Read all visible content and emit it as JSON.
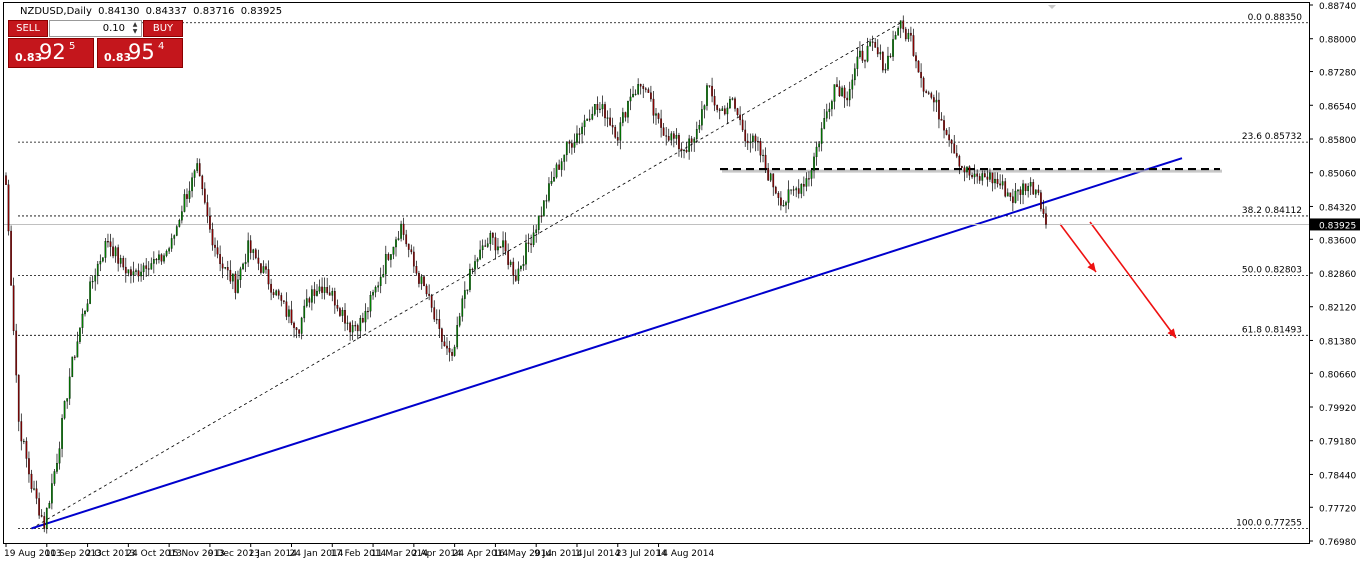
{
  "header": {
    "symbol": "NZDUSD,Daily",
    "open": "0.84130",
    "high": "0.84337",
    "low": "0.83716",
    "close": "0.83925"
  },
  "trade_panel": {
    "sell_label": "SELL",
    "buy_label": "BUY",
    "lot_value": "0.10",
    "sell_price_prefix": "0.83",
    "sell_price_big": "92",
    "sell_price_sup": "5",
    "buy_price_prefix": "0.83",
    "buy_price_big": "95",
    "buy_price_sup": "4",
    "button_color": "#c4161c"
  },
  "chart_data": {
    "type": "candlestick",
    "ylim": [
      0.7698,
      0.8874
    ],
    "y_ticks": [
      "0.88740",
      "0.88000",
      "0.87280",
      "0.86540",
      "0.85800",
      "0.85060",
      "0.84320",
      "0.83600",
      "0.82860",
      "0.82120",
      "0.81380",
      "0.80660",
      "0.79920",
      "0.79180",
      "0.78440",
      "0.77720",
      "0.76980"
    ],
    "x_ticks": [
      "19 Aug 2013",
      "10 Sep 2013",
      "2 Oct 2013",
      "24 Oct 2013",
      "15 Nov 2013",
      "9 Dec 2013",
      "2 Jan 2014",
      "24 Jan 2014",
      "17 Feb 2014",
      "11 Mar 2014",
      "2 Apr 2014",
      "24 Apr 2014",
      "16 May 2014",
      "9 Jun 2014",
      "1 Jul 2014",
      "23 Jul 2014",
      "14 Aug 2014"
    ],
    "current_price": "0.83925",
    "colors": {
      "bull": "#008000",
      "bear": "#8b0000",
      "trendline": "#0000cd",
      "arrows": "#ee1111",
      "current_price_bg": "#000000"
    },
    "fibonacci": [
      {
        "level": "0.0",
        "value": "0.88350"
      },
      {
        "level": "23.6",
        "value": "0.85732"
      },
      {
        "level": "38.2",
        "value": "0.84112"
      },
      {
        "level": "50.0",
        "value": "0.82803"
      },
      {
        "level": "61.8",
        "value": "0.81493"
      },
      {
        "level": "100.0",
        "value": "0.77255"
      }
    ],
    "anchors": [
      [
        0,
        0.848
      ],
      [
        5,
        0.796
      ],
      [
        10,
        0.782
      ],
      [
        15,
        0.7735
      ],
      [
        20,
        0.788
      ],
      [
        25,
        0.806
      ],
      [
        30,
        0.819
      ],
      [
        35,
        0.829
      ],
      [
        40,
        0.836
      ],
      [
        45,
        0.8305
      ],
      [
        50,
        0.828
      ],
      [
        55,
        0.831
      ],
      [
        60,
        0.831
      ],
      [
        65,
        0.835
      ],
      [
        70,
        0.845
      ],
      [
        75,
        0.851
      ],
      [
        80,
        0.838
      ],
      [
        85,
        0.83
      ],
      [
        90,
        0.826
      ],
      [
        95,
        0.834
      ],
      [
        100,
        0.83
      ],
      [
        105,
        0.825
      ],
      [
        110,
        0.82
      ],
      [
        115,
        0.817
      ],
      [
        120,
        0.825
      ],
      [
        125,
        0.826
      ],
      [
        130,
        0.822
      ],
      [
        135,
        0.817
      ],
      [
        140,
        0.818
      ],
      [
        145,
        0.825
      ],
      [
        150,
        0.833
      ],
      [
        155,
        0.839
      ],
      [
        160,
        0.83
      ],
      [
        165,
        0.824
      ],
      [
        170,
        0.815
      ],
      [
        175,
        0.809
      ],
      [
        180,
        0.825
      ],
      [
        185,
        0.832
      ],
      [
        190,
        0.836
      ],
      [
        195,
        0.834
      ],
      [
        200,
        0.828
      ],
      [
        205,
        0.835
      ],
      [
        210,
        0.842
      ],
      [
        215,
        0.85
      ],
      [
        220,
        0.856
      ],
      [
        225,
        0.86
      ],
      [
        230,
        0.865
      ],
      [
        235,
        0.864
      ],
      [
        240,
        0.859
      ],
      [
        245,
        0.868
      ],
      [
        250,
        0.87
      ],
      [
        255,
        0.862
      ],
      [
        260,
        0.859
      ],
      [
        265,
        0.856
      ],
      [
        270,
        0.857
      ],
      [
        275,
        0.869
      ],
      [
        280,
        0.864
      ],
      [
        285,
        0.866
      ],
      [
        290,
        0.859
      ],
      [
        295,
        0.856
      ],
      [
        300,
        0.849
      ],
      [
        305,
        0.844
      ],
      [
        310,
        0.847
      ],
      [
        315,
        0.85
      ],
      [
        320,
        0.86
      ],
      [
        325,
        0.87
      ],
      [
        330,
        0.868
      ],
      [
        335,
        0.876
      ],
      [
        340,
        0.878
      ],
      [
        345,
        0.874
      ],
      [
        350,
        0.883
      ],
      [
        355,
        0.88
      ],
      [
        360,
        0.87
      ],
      [
        365,
        0.865
      ],
      [
        370,
        0.859
      ],
      [
        375,
        0.852
      ],
      [
        380,
        0.849
      ],
      [
        385,
        0.85
      ],
      [
        390,
        0.848
      ],
      [
        395,
        0.845
      ],
      [
        400,
        0.848
      ],
      [
        405,
        0.847
      ],
      [
        408,
        0.8392
      ]
    ]
  }
}
